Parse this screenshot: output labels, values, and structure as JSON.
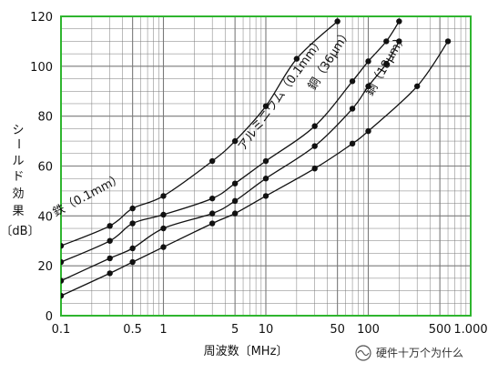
{
  "chart_data": {
    "type": "line",
    "title": "",
    "xlabel": "周波数〔MHz〕",
    "ylabel_chars": [
      "シ",
      "ー",
      "ル",
      "ド",
      "効",
      "果"
    ],
    "ylabel_unit": "〔dB〕",
    "x_scale": "log",
    "xlim": [
      0.1,
      1000
    ],
    "ylim": [
      0,
      120
    ],
    "x_ticks": [
      {
        "value": 0.1,
        "label": "0.1"
      },
      {
        "value": 0.5,
        "label": "0.5"
      },
      {
        "value": 1,
        "label": "1"
      },
      {
        "value": 5,
        "label": "5"
      },
      {
        "value": 10,
        "label": "10"
      },
      {
        "value": 50,
        "label": "50"
      },
      {
        "value": 100,
        "label": "100"
      },
      {
        "value": 500,
        "label": "500"
      },
      {
        "value": 1000,
        "label": "1.000"
      }
    ],
    "y_ticks": [
      {
        "value": 0,
        "label": "0"
      },
      {
        "value": 20,
        "label": "20"
      },
      {
        "value": 40,
        "label": "40"
      },
      {
        "value": 60,
        "label": "60"
      },
      {
        "value": 80,
        "label": "80"
      },
      {
        "value": 100,
        "label": "100"
      },
      {
        "value": 120,
        "label": "120"
      }
    ],
    "grid": true,
    "grid_color": "#7a7a7a",
    "frame_color": "#2fb52f",
    "series": [
      {
        "name": "鉄（0.1mm）",
        "x": [
          0.1,
          0.3,
          0.5,
          1,
          3,
          5,
          10,
          20,
          50
        ],
        "y": [
          28,
          36,
          43,
          48,
          62,
          70,
          84,
          103,
          118
        ]
      },
      {
        "name": "アルミニウム（0.1mm）",
        "x": [
          0.1,
          0.3,
          0.5,
          1,
          3,
          5,
          10,
          30,
          70,
          100,
          150,
          200
        ],
        "y": [
          21.5,
          30,
          37,
          40.5,
          47,
          53,
          62,
          76,
          94,
          102,
          110,
          118
        ]
      },
      {
        "name": "銅（36μm）",
        "x": [
          0.1,
          0.3,
          0.5,
          1,
          3,
          5,
          10,
          30,
          70,
          100,
          150,
          200
        ],
        "y": [
          14,
          23,
          27,
          35,
          41,
          46,
          55,
          68,
          83,
          92,
          101,
          110
        ]
      },
      {
        "name": "銅（18μm）",
        "x": [
          0.1,
          0.3,
          0.5,
          1,
          3,
          5,
          10,
          30,
          70,
          100,
          300,
          600
        ],
        "y": [
          8,
          17,
          21.5,
          27.5,
          37,
          41,
          48,
          59,
          69,
          74,
          92,
          110
        ]
      }
    ]
  },
  "watermark": {
    "text": "硬件十万个为什么",
    "icon": "wechat-channel-icon"
  }
}
